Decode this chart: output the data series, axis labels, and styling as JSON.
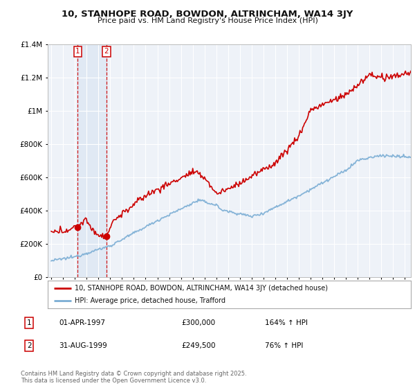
{
  "title_line1": "10, STANHOPE ROAD, BOWDON, ALTRINCHAM, WA14 3JY",
  "title_line2": "Price paid vs. HM Land Registry's House Price Index (HPI)",
  "sale1_date": "01-APR-1997",
  "sale1_price": 300000,
  "sale1_hpi": "164% ↑ HPI",
  "sale2_date": "31-AUG-1999",
  "sale2_price": 249500,
  "sale2_hpi": "76% ↑ HPI",
  "legend_label1": "10, STANHOPE ROAD, BOWDON, ALTRINCHAM, WA14 3JY (detached house)",
  "legend_label2": "HPI: Average price, detached house, Trafford",
  "footnote": "Contains HM Land Registry data © Crown copyright and database right 2025.\nThis data is licensed under the Open Government Licence v3.0.",
  "property_color": "#cc0000",
  "hpi_color": "#7aadd4",
  "background_color": "#eef2f8",
  "grid_color": "#ffffff",
  "ylim_min": 0,
  "ylim_max": 1400000,
  "x_start_year": 1995,
  "x_end_year": 2025
}
